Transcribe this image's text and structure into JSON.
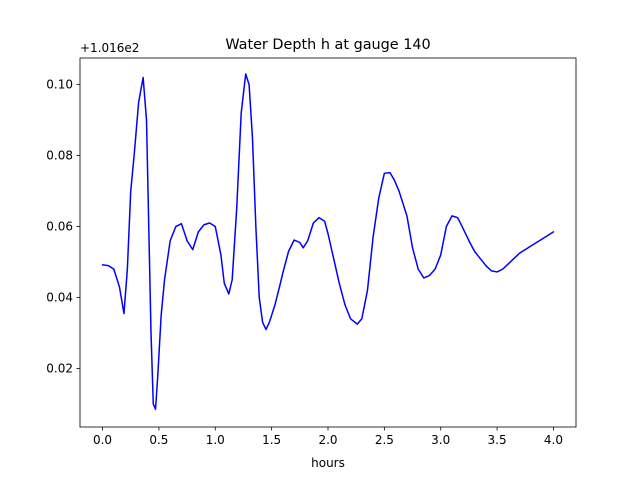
{
  "chart_data": {
    "type": "line",
    "title": "Water Depth h at gauge 140",
    "xlabel": "hours",
    "ylabel": "",
    "y_offset_label": "+1.016e2",
    "xlim": [
      -0.2,
      4.2
    ],
    "ylim": [
      0.0035,
      0.1075
    ],
    "xticks": [
      0.0,
      0.5,
      1.0,
      1.5,
      2.0,
      2.5,
      3.0,
      3.5,
      4.0
    ],
    "xtick_labels": [
      "0.0",
      "0.5",
      "1.0",
      "1.5",
      "2.0",
      "2.5",
      "3.0",
      "3.5",
      "4.0"
    ],
    "yticks": [
      0.02,
      0.04,
      0.06,
      0.08,
      0.1
    ],
    "ytick_labels": [
      "0.02",
      "0.04",
      "0.06",
      "0.08",
      "0.10"
    ],
    "grid": false,
    "legend": "none",
    "series": [
      {
        "color": "#0000ff",
        "x": [
          0.0,
          0.05,
          0.1,
          0.15,
          0.19,
          0.22,
          0.25,
          0.28,
          0.32,
          0.36,
          0.39,
          0.41,
          0.43,
          0.45,
          0.47,
          0.49,
          0.52,
          0.55,
          0.6,
          0.65,
          0.7,
          0.75,
          0.8,
          0.85,
          0.9,
          0.95,
          1.0,
          1.05,
          1.08,
          1.12,
          1.15,
          1.19,
          1.23,
          1.27,
          1.3,
          1.33,
          1.36,
          1.39,
          1.42,
          1.45,
          1.48,
          1.53,
          1.57,
          1.6,
          1.65,
          1.7,
          1.75,
          1.78,
          1.82,
          1.87,
          1.92,
          1.97,
          2.0,
          2.05,
          2.1,
          2.15,
          2.2,
          2.26,
          2.3,
          2.35,
          2.4,
          2.45,
          2.5,
          2.55,
          2.59,
          2.63,
          2.7,
          2.75,
          2.8,
          2.85,
          2.9,
          2.95,
          3.0,
          3.05,
          3.1,
          3.15,
          3.19,
          3.25,
          3.3,
          3.35,
          3.4,
          3.45,
          3.5,
          3.55,
          3.6,
          3.65,
          3.7,
          3.8,
          3.9,
          4.0
        ],
        "y": [
          0.0492,
          0.049,
          0.048,
          0.043,
          0.0355,
          0.048,
          0.07,
          0.08,
          0.095,
          0.102,
          0.09,
          0.06,
          0.03,
          0.01,
          0.0085,
          0.018,
          0.035,
          0.045,
          0.056,
          0.06,
          0.0608,
          0.056,
          0.0535,
          0.0585,
          0.0605,
          0.061,
          0.06,
          0.052,
          0.044,
          0.041,
          0.045,
          0.065,
          0.092,
          0.103,
          0.1,
          0.085,
          0.06,
          0.04,
          0.033,
          0.031,
          0.033,
          0.038,
          0.043,
          0.047,
          0.053,
          0.0562,
          0.0555,
          0.054,
          0.056,
          0.061,
          0.0625,
          0.0615,
          0.058,
          0.051,
          0.044,
          0.038,
          0.034,
          0.0325,
          0.034,
          0.042,
          0.057,
          0.068,
          0.075,
          0.0752,
          0.073,
          0.07,
          0.063,
          0.054,
          0.048,
          0.0455,
          0.0462,
          0.048,
          0.052,
          0.06,
          0.063,
          0.0625,
          0.06,
          0.056,
          0.053,
          0.051,
          0.049,
          0.0475,
          0.0472,
          0.048,
          0.0495,
          0.051,
          0.0525,
          0.0545,
          0.0565,
          0.0585
        ]
      }
    ]
  }
}
